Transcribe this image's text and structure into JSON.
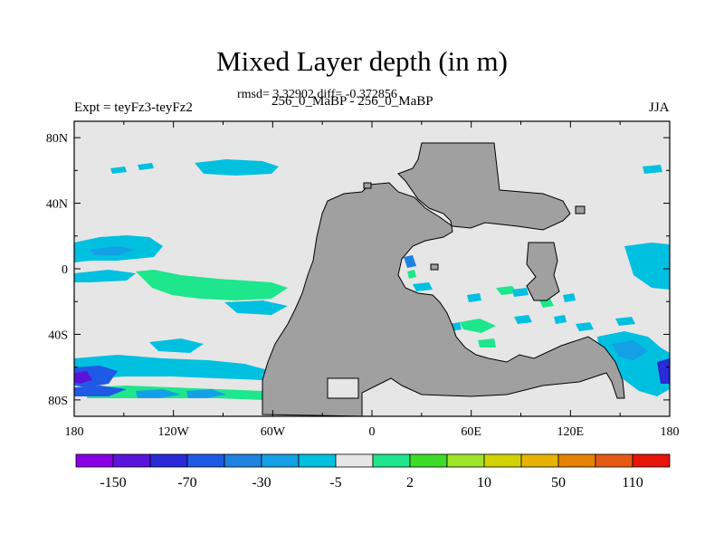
{
  "chart_data": {
    "type": "heatmap",
    "title": "Mixed Layer depth (in m)",
    "subtitle": "rmsd= 3.32902 diff= -0.372856",
    "left_label": "Expt = teyFz3-teyFz2",
    "center_label": "256_0_MaBP - 256_0_MaBP",
    "right_label": "JJA",
    "x_ticks": [
      "180",
      "120W",
      "60W",
      "0",
      "60E",
      "120E",
      "180"
    ],
    "y_ticks": [
      "80N",
      "40N",
      "0",
      "40S",
      "80S"
    ],
    "xlim": [
      -180,
      180
    ],
    "ylim": [
      -90,
      90
    ],
    "colorbar": {
      "labels": [
        "-150",
        "-70",
        "-30",
        "-5",
        "2",
        "10",
        "50",
        "110"
      ],
      "colors": [
        "#8a00e6",
        "#5a14dc",
        "#2a2ad8",
        "#1e5ae6",
        "#1e82e0",
        "#14a0e6",
        "#00c0e0",
        "#e6e6e6",
        "#1ee68c",
        "#3cdc28",
        "#a0e628",
        "#d2d200",
        "#e6b400",
        "#e68200",
        "#e65a14",
        "#e6140a"
      ]
    },
    "land_color": "#a0a0a0",
    "ocean_color": "#e6e6e6"
  }
}
